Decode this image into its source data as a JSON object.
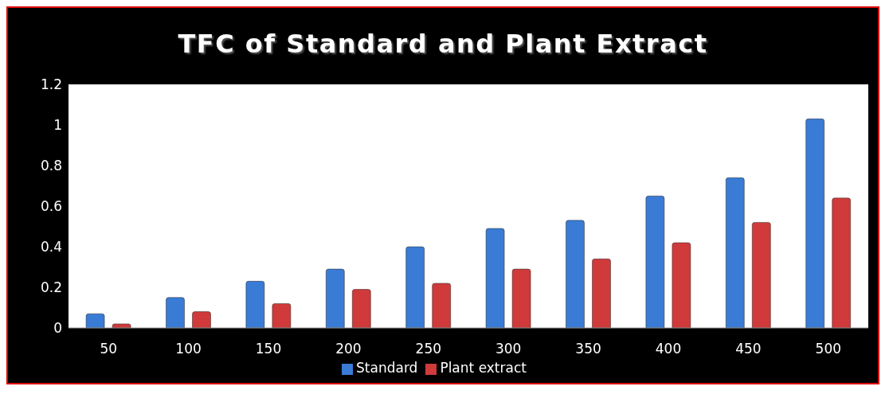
{
  "chart_data": {
    "type": "bar",
    "title": "TFC of Standard and Plant Extract",
    "categories": [
      "50",
      "100",
      "150",
      "200",
      "250",
      "300",
      "350",
      "400",
      "450",
      "500"
    ],
    "series": [
      {
        "name": "Standard",
        "color": "#3a7bd5",
        "values": [
          0.07,
          0.15,
          0.23,
          0.29,
          0.4,
          0.49,
          0.53,
          0.65,
          0.74,
          1.03
        ]
      },
      {
        "name": "Plant extract",
        "color": "#d03a3a",
        "values": [
          0.02,
          0.08,
          0.12,
          0.19,
          0.22,
          0.29,
          0.34,
          0.42,
          0.52,
          0.64
        ]
      }
    ],
    "ylim": [
      0,
      1.2
    ],
    "yticks": [
      0,
      0.2,
      0.4,
      0.6,
      0.8,
      1,
      1.2
    ],
    "grid": false,
    "legend": "bottom"
  }
}
